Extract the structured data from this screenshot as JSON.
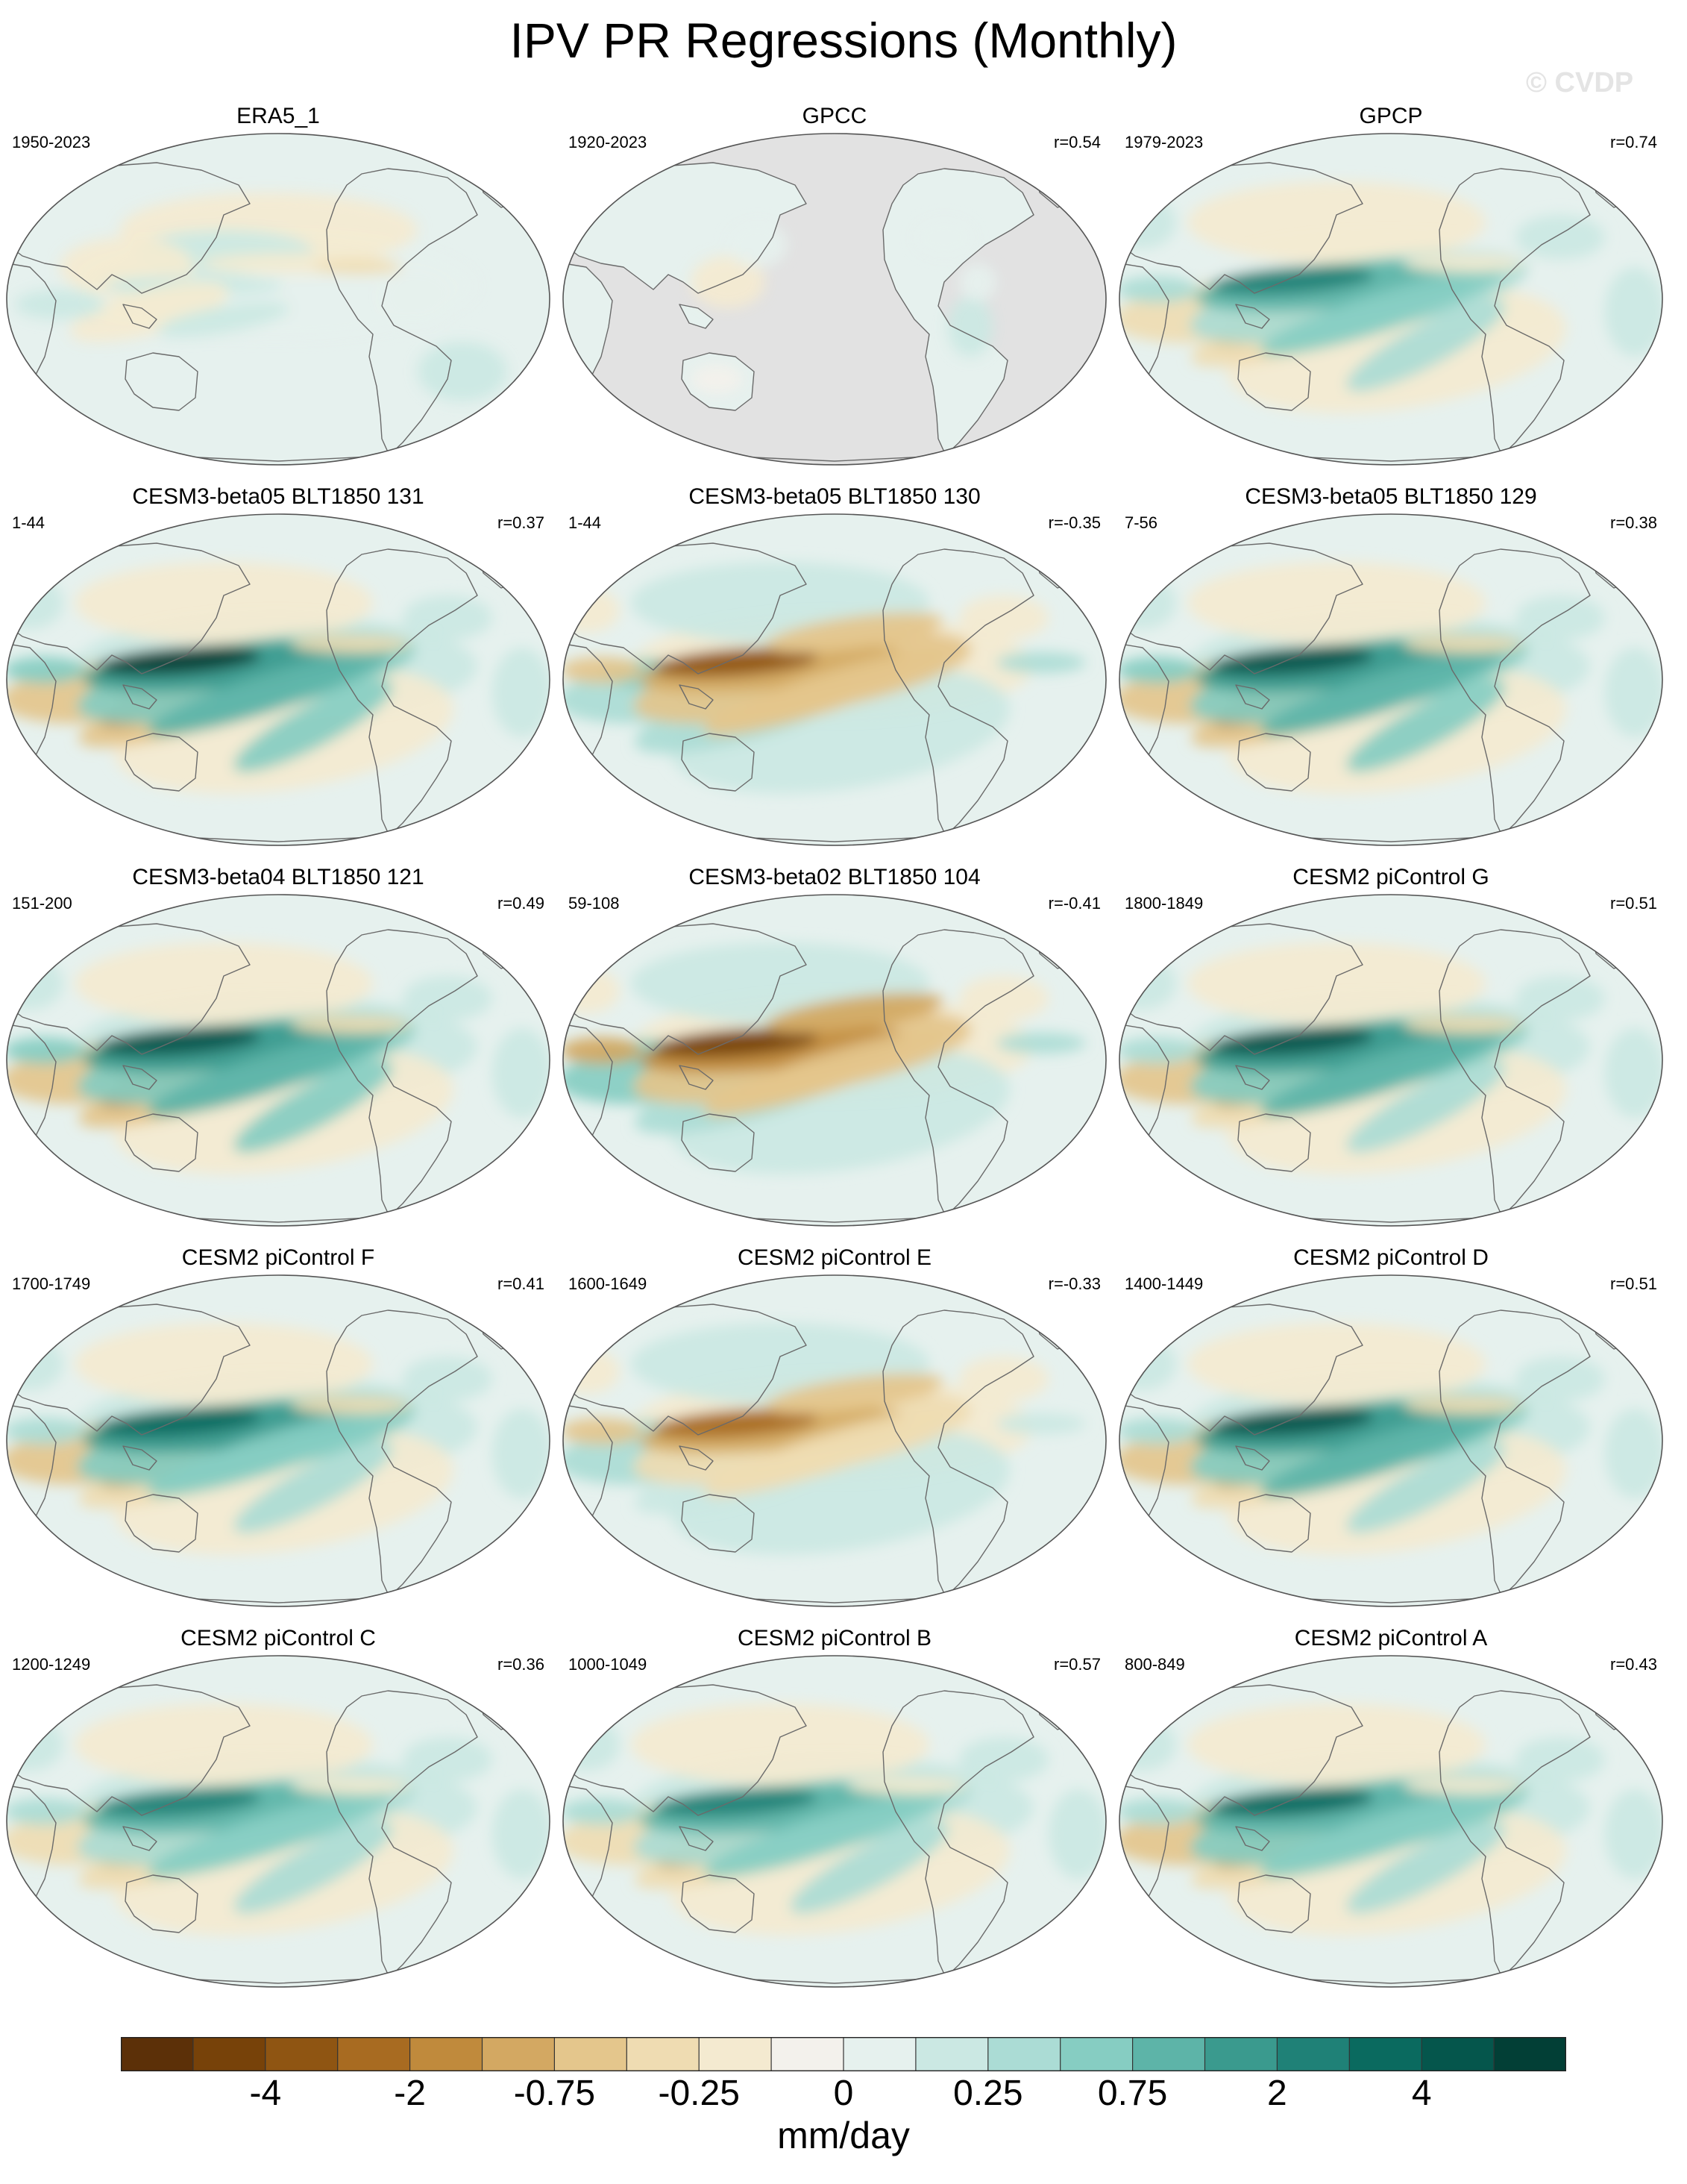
{
  "title": "IPV PR Regressions (Monthly)",
  "watermark": "© CVDP",
  "colors": {
    "land_mask": "#e2e2e2",
    "outline": "#555555",
    "coast": "#6a6a6a"
  },
  "panels": [
    {
      "title": "ERA5_1",
      "years": "1950-2023",
      "corr": "",
      "pattern": "obs",
      "strength": 0.55
    },
    {
      "title": "GPCC",
      "years": "1920-2023",
      "corr": "r=0.54",
      "pattern": "gpcc",
      "strength": 0.35
    },
    {
      "title": "GPCP",
      "years": "1979-2023",
      "corr": "r=0.74",
      "pattern": "pos",
      "strength": 0.65
    },
    {
      "title": "CESM3-beta05 BLT1850 131",
      "years": "1-44",
      "corr": "r=0.37",
      "pattern": "pos",
      "strength": 1.0
    },
    {
      "title": "CESM3-beta05 BLT1850 130",
      "years": "1-44",
      "corr": "r=-0.35",
      "pattern": "neg",
      "strength": 0.9
    },
    {
      "title": "CESM3-beta05 BLT1850 129",
      "years": "7-56",
      "corr": "r=0.38",
      "pattern": "pos",
      "strength": 0.95
    },
    {
      "title": "CESM3-beta04 BLT1850 121",
      "years": "151-200",
      "corr": "r=0.49",
      "pattern": "pos",
      "strength": 0.95
    },
    {
      "title": "CESM3-beta02 BLT1850 104",
      "years": "59-108",
      "corr": "r=-0.41",
      "pattern": "neg",
      "strength": 1.0
    },
    {
      "title": "CESM2 piControl G",
      "years": "1800-1849",
      "corr": "r=0.51",
      "pattern": "pos",
      "strength": 0.9
    },
    {
      "title": "CESM2 piControl F",
      "years": "1700-1749",
      "corr": "r=0.41",
      "pattern": "pos",
      "strength": 0.85
    },
    {
      "title": "CESM2 piControl E",
      "years": "1600-1649",
      "corr": "r=-0.33",
      "pattern": "neg",
      "strength": 0.75
    },
    {
      "title": "CESM2 piControl D",
      "years": "1400-1449",
      "corr": "r=0.51",
      "pattern": "pos",
      "strength": 0.9
    },
    {
      "title": "CESM2 piControl C",
      "years": "1200-1249",
      "corr": "r=0.36",
      "pattern": "pos",
      "strength": 0.7
    },
    {
      "title": "CESM2 piControl B",
      "years": "1000-1049",
      "corr": "r=0.57",
      "pattern": "pos",
      "strength": 0.75
    },
    {
      "title": "CESM2 piControl A",
      "years": "800-849",
      "corr": "r=0.43",
      "pattern": "pos",
      "strength": 0.8
    }
  ],
  "colorbar": {
    "colors": [
      "#5c3008",
      "#774209",
      "#8f5512",
      "#a86b21",
      "#c08a3c",
      "#d3a862",
      "#e4c68c",
      "#efdcb2",
      "#f4ead0",
      "#f3f1ec",
      "#e6f1ee",
      "#cbe8e3",
      "#abdcd5",
      "#86cdc2",
      "#5db4a8",
      "#3a9a8e",
      "#1f8177",
      "#0a6a5f",
      "#05564c",
      "#023f36"
    ],
    "labels": [
      "-4",
      "-2",
      "-0.75",
      "-0.25",
      "0",
      "0.25",
      "0.75",
      "2",
      "4"
    ],
    "label_boundaries": [
      2,
      4,
      6,
      8,
      10,
      12,
      14,
      16,
      18
    ],
    "units": "mm/day"
  }
}
